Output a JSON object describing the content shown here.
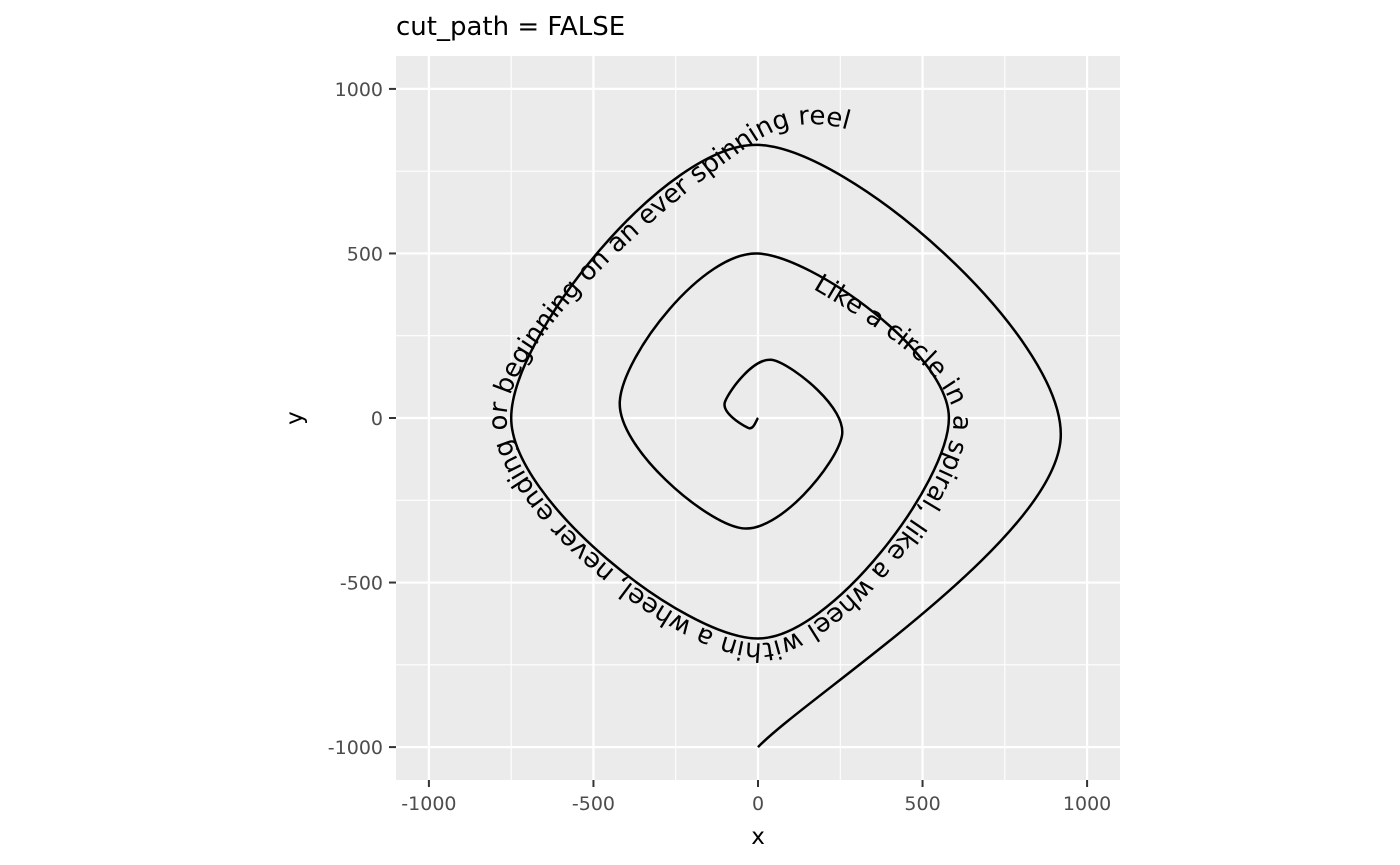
{
  "chart_data": {
    "type": "line",
    "title": "cut_path = FALSE",
    "xlabel": "x",
    "ylabel": "y",
    "xlim": [
      -1100,
      1100
    ],
    "ylim": [
      -1100,
      1100
    ],
    "x_ticks": [
      -1000,
      -500,
      0,
      500,
      1000
    ],
    "y_ticks": [
      -1000,
      -500,
      0,
      500,
      1000
    ],
    "x_tick_labels": [
      "-1000",
      "-500",
      "0",
      "500",
      "1000"
    ],
    "y_tick_labels": [
      "-1000",
      "-500",
      "0",
      "500",
      "1000"
    ],
    "grid": true,
    "panel_background": "#ebebeb",
    "grid_color": "#ffffff",
    "line_color": "#000000",
    "spiral": {
      "start": [
        0,
        0
      ],
      "end": [
        0,
        -1000
      ],
      "turns": 3,
      "coord_samples": [
        {
          "x": -30,
          "y": -30
        },
        {
          "x": -100,
          "y": 50
        },
        {
          "x": 50,
          "y": 175
        },
        {
          "x": 255,
          "y": -55
        },
        {
          "x": -50,
          "y": -335
        },
        {
          "x": -420,
          "y": 50
        },
        {
          "x": 0,
          "y": 500
        },
        {
          "x": 580,
          "y": 0
        },
        {
          "x": 0,
          "y": -670
        },
        {
          "x": -750,
          "y": 0
        },
        {
          "x": 0,
          "y": 830
        },
        {
          "x": 920,
          "y": -50
        },
        {
          "x": 0,
          "y": -1000
        }
      ]
    },
    "path_text": "Like a circle in a spiral, like a wheel within a wheel, never ending or beginning on an ever spinning reel"
  }
}
